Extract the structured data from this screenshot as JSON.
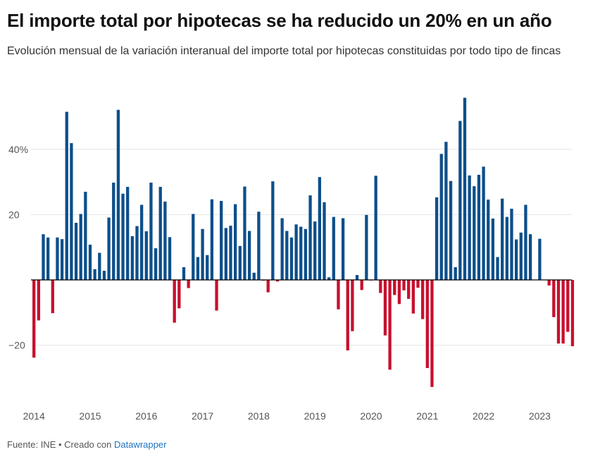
{
  "title": "El importe total por hipotecas se ha reducido un 20% en un año",
  "subtitle": "Evolución mensual de la variación interanual del importe total por hipotecas constituidas por todo tipo de fincas",
  "footer": {
    "source_label": "Fuente: INE • Creado con",
    "credit": "Datawrapper"
  },
  "colors": {
    "positive": "#0d4f8b",
    "negative": "#c8102e",
    "grid": "#e4e4e4",
    "baseline": "#000000"
  },
  "chart_data": {
    "type": "bar",
    "title": "El importe total por hipotecas se ha reducido un 20% en un año",
    "subtitle": "Evolución mensual de la variación interanual del importe total por hipotecas constituidas por todo tipo de fincas",
    "xlabel": "",
    "ylabel": "",
    "unit": "%",
    "grid": true,
    "ylim": [
      -33,
      56
    ],
    "yticks": [
      {
        "value": 40,
        "label": "40%"
      },
      {
        "value": 20,
        "label": "20"
      },
      {
        "value": -20,
        "label": "−20"
      }
    ],
    "xticks": [
      "2014",
      "2015",
      "2016",
      "2017",
      "2018",
      "2019",
      "2020",
      "2021",
      "2022",
      "2023"
    ],
    "start": "2014-01",
    "values": [
      -23.8,
      -12.4,
      14.0,
      13.0,
      -10.2,
      13.0,
      12.5,
      51.5,
      41.9,
      17.5,
      20.2,
      27.0,
      10.8,
      3.3,
      8.3,
      2.8,
      19.1,
      29.8,
      52.1,
      26.4,
      28.5,
      13.4,
      16.5,
      23.0,
      14.9,
      29.8,
      9.7,
      28.5,
      24.0,
      13.1,
      -13.1,
      -8.7,
      3.9,
      -2.5,
      20.2,
      7.0,
      15.6,
      7.6,
      24.7,
      -9.4,
      24.2,
      15.9,
      16.6,
      23.2,
      10.4,
      28.6,
      15.0,
      2.2,
      20.9,
      -0.2,
      -3.8,
      30.2,
      -0.5,
      18.9,
      15.0,
      13.0,
      17.0,
      16.3,
      15.6,
      25.9,
      17.9,
      31.5,
      23.8,
      0.8,
      19.3,
      -9.0,
      18.9,
      -21.6,
      -15.7,
      1.5,
      -3.1,
      19.9,
      -0.1,
      31.9,
      -4.0,
      -17.0,
      -27.5,
      -4.6,
      -7.4,
      -3.2,
      -5.8,
      -10.3,
      -2.4,
      -12.0,
      -27.0,
      -32.8,
      25.3,
      38.6,
      42.3,
      30.3,
      3.9,
      48.7,
      55.8,
      32.0,
      28.7,
      32.2,
      34.7,
      24.6,
      18.8,
      7.0,
      24.9,
      19.3,
      21.8,
      12.4,
      14.5,
      23.0,
      14.0,
      0.0,
      12.6,
      0.0,
      -1.7,
      -11.4,
      -19.5,
      -19.5,
      -15.9,
      -20.3
    ]
  }
}
